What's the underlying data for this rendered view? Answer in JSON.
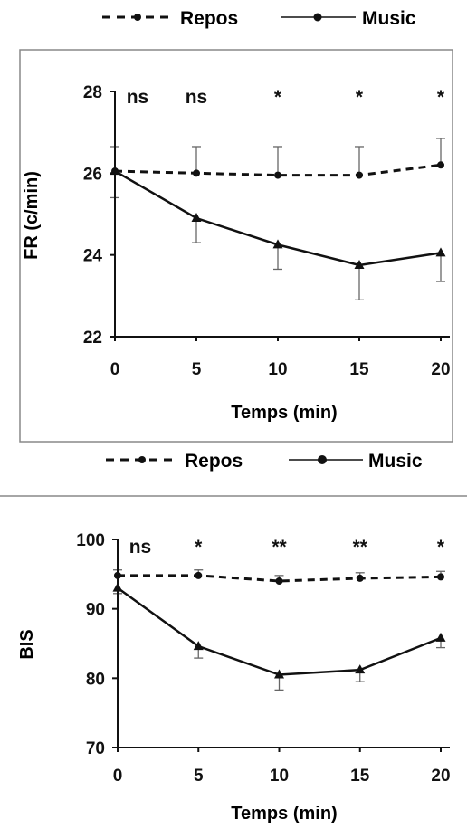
{
  "colors": {
    "line": "#111111",
    "errorbar": "#666666",
    "frame": "#888888",
    "text": "#111111"
  },
  "chart_data": [
    {
      "type": "line",
      "xlabel": "Temps (min)",
      "ylabel": "FR (c/min)",
      "x": [
        0,
        5,
        10,
        15,
        20
      ],
      "ylim": [
        22,
        28
      ],
      "yticks": [
        22,
        24,
        26,
        28
      ],
      "grid": false,
      "legend_placement": "top",
      "significance": [
        "ns",
        "ns",
        "*",
        "*",
        "*"
      ],
      "series": [
        {
          "name": "Repos",
          "style": "dashed",
          "marker": "circle",
          "values": [
            26.05,
            26.0,
            25.95,
            25.95,
            26.2
          ],
          "errors": [
            0.6,
            0.65,
            0.7,
            0.7,
            0.65
          ]
        },
        {
          "name": "Music",
          "style": "solid",
          "marker": "triangle",
          "values": [
            26.05,
            24.9,
            24.25,
            23.75,
            24.05
          ],
          "errors": [
            0.65,
            0.6,
            0.6,
            0.85,
            0.7
          ]
        }
      ]
    },
    {
      "type": "line",
      "xlabel": "Temps (min)",
      "ylabel": "BIS",
      "x": [
        0,
        5,
        10,
        15,
        20
      ],
      "ylim": [
        70,
        100
      ],
      "yticks": [
        70,
        80,
        90,
        100
      ],
      "grid": false,
      "legend_placement": "top",
      "significance": [
        "ns",
        "*",
        "**",
        "**",
        "*"
      ],
      "series": [
        {
          "name": "Repos",
          "style": "dashed",
          "marker": "circle",
          "values": [
            94.8,
            94.8,
            94.0,
            94.4,
            94.6
          ],
          "errors": [
            0.8,
            0.8,
            0.8,
            0.8,
            0.8
          ]
        },
        {
          "name": "Music",
          "style": "solid",
          "marker": "triangle",
          "values": [
            93.0,
            84.6,
            80.5,
            81.2,
            85.8
          ],
          "errors": [
            0.8,
            1.7,
            2.2,
            1.7,
            1.4
          ]
        }
      ]
    }
  ]
}
